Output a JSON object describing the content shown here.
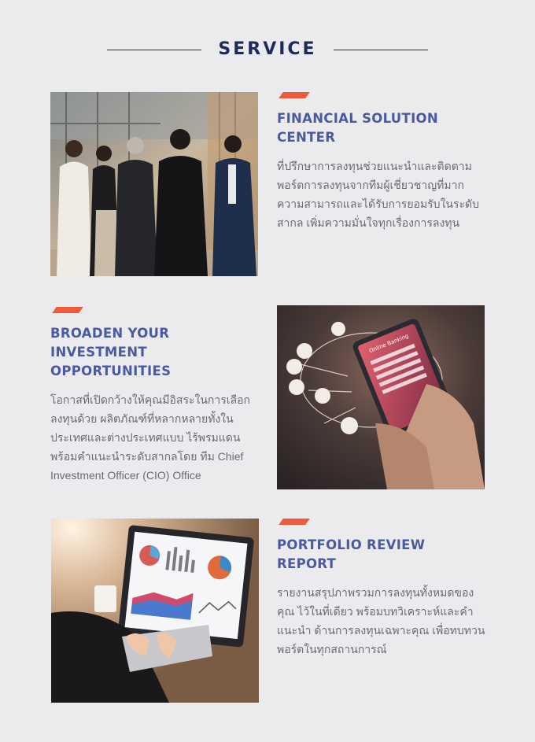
{
  "header": {
    "title": "SERVICE"
  },
  "colors": {
    "accent": "#ee5a3a",
    "heading": "#4a5aa0",
    "title": "#1e2a5a",
    "body": "#6a6a72",
    "background": "#ebebee"
  },
  "services": [
    {
      "title": "FINANCIAL SOLUTION CENTER",
      "description": "ที่ปรึกษาการลงทุนช่วยแนะนำและติดตามพอร์ตการลงทุนจากทีมผู้เชี่ยวชาญที่มากความสามารถและได้รับการยอมรับในระดับสากล เพิ่มความมั่นใจทุกเรื่องการลงทุน",
      "image": "business-team-photo"
    },
    {
      "title": "BROADEN YOUR INVESTMENT OPPORTUNITIES",
      "description": "โอกาสที่เปิดกว้างให้คุณมีอิสระในการเลือกลงทุนด้วย ผลิตภัณฑ์ที่หลากหลายทั้งในประเทศและต่างประเทศแบบ ไร้พรมแดน พร้อมคำแนะนำระดับสากลโดย ทีม Chief Investment Officer (CIO) Office",
      "image": "digital-tablet-photo",
      "tablet_screen_label": "Online Banking"
    },
    {
      "title": "PORTFOLIO REVIEW REPORT",
      "description": "รายงานสรุปภาพรวมการลงทุนทั้งหมดของคุณ ไว้ในที่เดียว พร้อมบทวิเคราะห์และคำแนะนำ ด้านการลงทุนเฉพาะคุณ เพื่อทบทวนพอร์ตในทุกสถานการณ์",
      "image": "laptop-charts-photo"
    }
  ]
}
